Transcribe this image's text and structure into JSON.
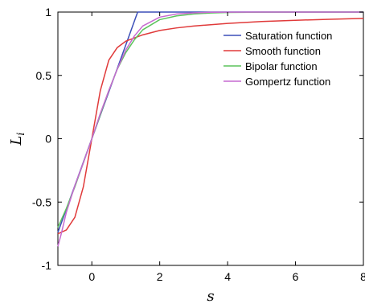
{
  "chart_data": {
    "type": "line",
    "title": "",
    "xlabel": "s",
    "ylabel_main": "L",
    "ylabel_sub": "i",
    "xlim": [
      -1,
      8
    ],
    "ylim": [
      -1,
      1
    ],
    "x_ticks": [
      0,
      2,
      4,
      6,
      8
    ],
    "y_ticks": [
      -1,
      -0.5,
      0,
      0.5,
      1
    ],
    "x_tick_labels": [
      "0",
      "2",
      "4",
      "6",
      "8"
    ],
    "y_tick_labels": [
      "-1",
      "-0.5",
      "0",
      "0.5",
      "1"
    ],
    "grid": false,
    "legend_position": "top-right",
    "series": [
      {
        "name": "Saturation function",
        "color": "#3b4fb8",
        "x": [
          -1,
          -0.5,
          0,
          0.5,
          1,
          1.35,
          2,
          3,
          4,
          5,
          6,
          7,
          8
        ],
        "y": [
          -0.74,
          -0.37,
          0,
          0.37,
          0.74,
          1,
          1,
          1,
          1,
          1,
          1,
          1,
          1
        ]
      },
      {
        "name": "Smooth function",
        "color": "#e03a3a",
        "x": [
          -1,
          -0.75,
          -0.5,
          -0.25,
          0,
          0.25,
          0.5,
          0.75,
          1,
          1.5,
          2,
          2.5,
          3,
          4,
          5,
          6,
          7,
          8
        ],
        "y": [
          -0.75,
          -0.72,
          -0.62,
          -0.38,
          0,
          0.38,
          0.62,
          0.72,
          0.77,
          0.82,
          0.855,
          0.875,
          0.89,
          0.91,
          0.925,
          0.935,
          0.943,
          0.95
        ]
      },
      {
        "name": "Bipolar function",
        "color": "#5cc45c",
        "x": [
          -1,
          -0.75,
          -0.5,
          -0.25,
          0,
          0.25,
          0.5,
          0.75,
          1,
          1.25,
          1.5,
          2,
          2.5,
          3,
          3.5,
          4,
          5,
          6,
          7,
          8
        ],
        "y": [
          -0.7,
          -0.55,
          -0.38,
          -0.19,
          0,
          0.19,
          0.38,
          0.55,
          0.68,
          0.78,
          0.86,
          0.94,
          0.97,
          0.985,
          0.993,
          0.997,
          0.999,
          1,
          1,
          1
        ]
      },
      {
        "name": "Gompertz function",
        "color": "#c66ad0",
        "x": [
          -1,
          -0.9,
          -0.75,
          -0.5,
          -0.25,
          0,
          0.25,
          0.5,
          0.75,
          1,
          1.25,
          1.5,
          2,
          2.5,
          3,
          3.5,
          4,
          5,
          6,
          7,
          8
        ],
        "y": [
          -0.85,
          -0.75,
          -0.58,
          -0.37,
          -0.19,
          0,
          0.2,
          0.38,
          0.55,
          0.7,
          0.81,
          0.89,
          0.96,
          0.985,
          0.994,
          0.998,
          0.999,
          1,
          1,
          1,
          1
        ]
      }
    ]
  }
}
